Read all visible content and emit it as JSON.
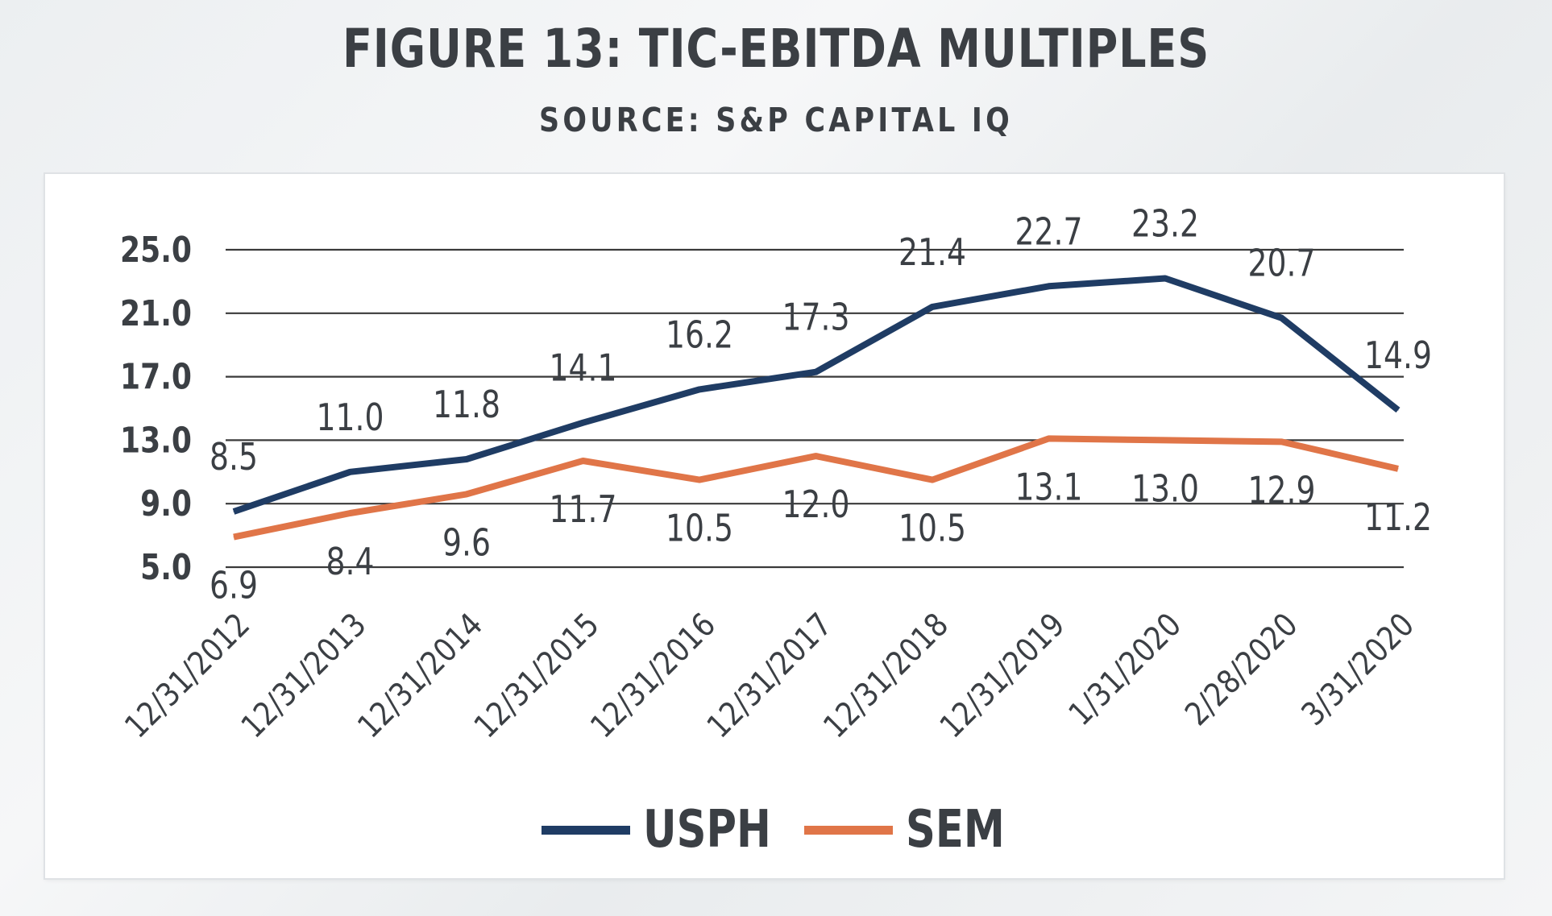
{
  "title": "FIGURE 13: TIC-EBITDA MULTIPLES",
  "subtitle": "SOURCE: S&P CAPITAL IQ",
  "chart_data": {
    "type": "line",
    "categories": [
      "12/31/2012",
      "12/31/2013",
      "12/31/2014",
      "12/31/2015",
      "12/31/2016",
      "12/31/2017",
      "12/31/2018",
      "12/31/2019",
      "1/31/2020",
      "2/28/2020",
      "3/31/2020"
    ],
    "y_ticks": [
      "25.0",
      "21.0",
      "17.0",
      "13.0",
      "9.0",
      "5.0"
    ],
    "ylim": [
      5.0,
      25.0
    ],
    "grid": true,
    "legend_position": "bottom",
    "series": [
      {
        "name": "USPH",
        "color": "#1f3c64",
        "values": [
          8.5,
          11.0,
          11.8,
          14.1,
          16.2,
          17.3,
          21.4,
          22.7,
          23.2,
          20.7,
          14.9
        ],
        "labels": [
          "8.5",
          "11.0",
          "11.8",
          "14.1",
          "16.2",
          "17.3",
          "21.4",
          "22.7",
          "23.2",
          "20.7",
          "14.9"
        ]
      },
      {
        "name": "SEM",
        "color": "#e07548",
        "values": [
          6.9,
          8.4,
          9.6,
          11.7,
          10.5,
          12.0,
          10.5,
          13.1,
          13.0,
          12.9,
          11.2
        ],
        "labels": [
          "6.9",
          "8.4",
          "9.6",
          "11.7",
          "10.5",
          "12.0",
          "10.5",
          "13.1",
          "13.0",
          "12.9",
          "11.2"
        ]
      }
    ]
  }
}
